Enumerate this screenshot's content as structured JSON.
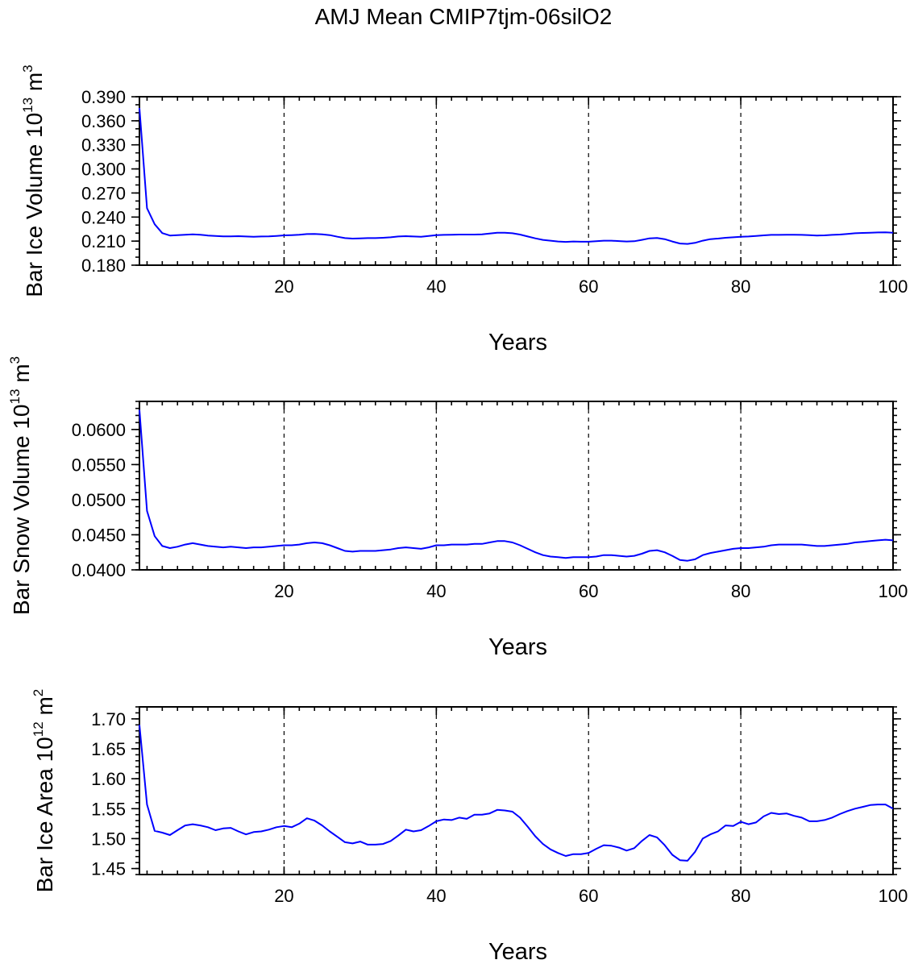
{
  "title": "AMJ Mean CMIP7tjm-06silO2",
  "colors": {
    "series": "#0000ff",
    "axes": "#000000",
    "background": "#ffffff"
  },
  "chart_data": [
    {
      "type": "line",
      "name": "ice-volume",
      "title": "",
      "xlabel": "Years",
      "ylabel": {
        "main": "Bar Ice Volume 10",
        "exp": "13",
        "unit": " m",
        "unit_exp": "3"
      },
      "xlim": [
        1,
        100
      ],
      "ylim": [
        0.18,
        0.39
      ],
      "xticks": [
        20,
        40,
        60,
        80,
        100
      ],
      "xtick_labels": [
        "20",
        "40",
        "60",
        "80",
        "100"
      ],
      "yticks": [
        0.18,
        0.21,
        0.24,
        0.27,
        0.3,
        0.33,
        0.36,
        0.39
      ],
      "ytick_labels": [
        "0.180",
        "0.210",
        "0.240",
        "0.270",
        "0.300",
        "0.330",
        "0.360",
        "0.390"
      ],
      "x_minor_step": 2,
      "y_minor_step": 0.01,
      "grid_x": [
        20,
        40,
        60,
        80
      ],
      "series": [
        {
          "name": "Bar Ice Volume",
          "x_start": 1,
          "values": [
            0.376,
            0.251,
            0.231,
            0.22,
            0.217,
            0.2175,
            0.218,
            0.2185,
            0.218,
            0.217,
            0.2165,
            0.216,
            0.216,
            0.2162,
            0.2158,
            0.2155,
            0.2158,
            0.216,
            0.2165,
            0.2172,
            0.2175,
            0.218,
            0.2188,
            0.219,
            0.2185,
            0.2175,
            0.2155,
            0.2138,
            0.2132,
            0.2135,
            0.2138,
            0.2138,
            0.2142,
            0.2148,
            0.2158,
            0.2162,
            0.2158,
            0.2155,
            0.2165,
            0.2175,
            0.2178,
            0.218,
            0.2182,
            0.2182,
            0.2182,
            0.2185,
            0.2195,
            0.2205,
            0.2205,
            0.2198,
            0.2182,
            0.2158,
            0.2135,
            0.2115,
            0.2105,
            0.2095,
            0.209,
            0.2095,
            0.2092,
            0.2092,
            0.2098,
            0.2105,
            0.2105,
            0.21,
            0.2095,
            0.2098,
            0.2115,
            0.2135,
            0.214,
            0.2125,
            0.2095,
            0.207,
            0.2065,
            0.2078,
            0.2105,
            0.2125,
            0.2132,
            0.2142,
            0.2148,
            0.2155,
            0.2158,
            0.2165,
            0.2172,
            0.2178,
            0.2178,
            0.218,
            0.218,
            0.2178,
            0.2175,
            0.217,
            0.2172,
            0.2178,
            0.2182,
            0.219,
            0.2198,
            0.2202,
            0.2205,
            0.2208,
            0.221,
            0.2205
          ]
        }
      ]
    },
    {
      "type": "line",
      "name": "snow-volume",
      "title": "",
      "xlabel": "Years",
      "ylabel": {
        "main": "Bar Snow Volume 10",
        "exp": "13",
        "unit": " m",
        "unit_exp": "3"
      },
      "xlim": [
        1,
        100
      ],
      "ylim": [
        0.04,
        0.064
      ],
      "xticks": [
        20,
        40,
        60,
        80,
        100
      ],
      "xtick_labels": [
        "20",
        "40",
        "60",
        "80",
        "100"
      ],
      "yticks": [
        0.04,
        0.045,
        0.05,
        0.055,
        0.06
      ],
      "ytick_labels": [
        "0.0400",
        "0.0450",
        "0.0500",
        "0.0550",
        "0.0600"
      ],
      "x_minor_step": 2,
      "y_minor_step": 0.001,
      "grid_x": [
        20,
        40,
        60,
        80
      ],
      "series": [
        {
          "name": "Bar Snow Volume",
          "x_start": 1,
          "values": [
            0.0628,
            0.0484,
            0.0448,
            0.0434,
            0.0431,
            0.0433,
            0.0436,
            0.0438,
            0.0436,
            0.0434,
            0.0433,
            0.0432,
            0.0433,
            0.0432,
            0.0431,
            0.0432,
            0.0432,
            0.0433,
            0.0434,
            0.0435,
            0.0435,
            0.0436,
            0.0438,
            0.0439,
            0.0438,
            0.0435,
            0.0431,
            0.0427,
            0.0426,
            0.0427,
            0.0427,
            0.0427,
            0.0428,
            0.0429,
            0.0431,
            0.0432,
            0.0431,
            0.043,
            0.0432,
            0.0435,
            0.0435,
            0.0436,
            0.0436,
            0.0436,
            0.0437,
            0.0437,
            0.0439,
            0.0441,
            0.0441,
            0.0439,
            0.0435,
            0.043,
            0.0425,
            0.0421,
            0.0419,
            0.0418,
            0.0417,
            0.0418,
            0.0418,
            0.0418,
            0.0419,
            0.0421,
            0.0421,
            0.042,
            0.0419,
            0.042,
            0.0423,
            0.0427,
            0.0428,
            0.0425,
            0.042,
            0.0414,
            0.0413,
            0.0415,
            0.0421,
            0.0424,
            0.0426,
            0.0428,
            0.043,
            0.0431,
            0.0431,
            0.0432,
            0.0433,
            0.0435,
            0.0436,
            0.0436,
            0.0436,
            0.0436,
            0.0435,
            0.0434,
            0.0434,
            0.0435,
            0.0436,
            0.0437,
            0.0439,
            0.044,
            0.0441,
            0.0442,
            0.0443,
            0.0442
          ]
        }
      ]
    },
    {
      "type": "line",
      "name": "ice-area",
      "title": "",
      "xlabel": "Years",
      "ylabel": {
        "main": "Bar Ice Area 10",
        "exp": "12",
        "unit": " m",
        "unit_exp": "2"
      },
      "xlim": [
        1,
        100
      ],
      "ylim": [
        1.44,
        1.72
      ],
      "xticks": [
        20,
        40,
        60,
        80,
        100
      ],
      "xtick_labels": [
        "20",
        "40",
        "60",
        "80",
        "100"
      ],
      "yticks": [
        1.45,
        1.5,
        1.55,
        1.6,
        1.65,
        1.7
      ],
      "ytick_labels": [
        "1.45",
        "1.50",
        "1.55",
        "1.60",
        "1.65",
        "1.70"
      ],
      "x_minor_step": 2,
      "y_minor_step": 0.01,
      "grid_x": [
        20,
        40,
        60,
        80
      ],
      "series": [
        {
          "name": "Bar Ice Area",
          "x_start": 1,
          "values": [
            1.69,
            1.557,
            1.513,
            1.51,
            1.506,
            1.514,
            1.522,
            1.524,
            1.522,
            1.519,
            1.514,
            1.517,
            1.518,
            1.512,
            1.507,
            1.511,
            1.512,
            1.515,
            1.519,
            1.521,
            1.519,
            1.525,
            1.534,
            1.53,
            1.522,
            1.512,
            1.503,
            1.494,
            1.492,
            1.495,
            1.49,
            1.49,
            1.491,
            1.496,
            1.505,
            1.515,
            1.512,
            1.514,
            1.521,
            1.529,
            1.532,
            1.531,
            1.535,
            1.533,
            1.54,
            1.54,
            1.542,
            1.548,
            1.547,
            1.545,
            1.535,
            1.52,
            1.504,
            1.491,
            1.482,
            1.476,
            1.471,
            1.474,
            1.474,
            1.476,
            1.483,
            1.489,
            1.488,
            1.485,
            1.48,
            1.484,
            1.496,
            1.506,
            1.502,
            1.489,
            1.473,
            1.464,
            1.463,
            1.478,
            1.5,
            1.507,
            1.512,
            1.522,
            1.521,
            1.528,
            1.524,
            1.527,
            1.537,
            1.543,
            1.541,
            1.542,
            1.538,
            1.535,
            1.529,
            1.529,
            1.531,
            1.535,
            1.541,
            1.546,
            1.55,
            1.553,
            1.556,
            1.557,
            1.557,
            1.55
          ]
        }
      ]
    }
  ]
}
